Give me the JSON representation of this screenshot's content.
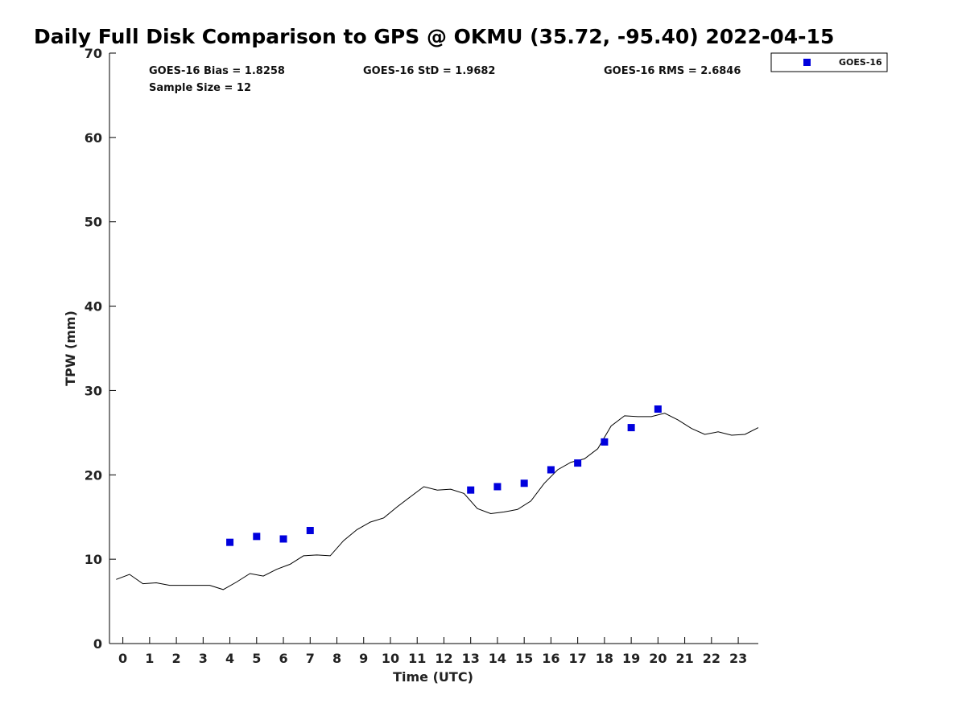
{
  "chart_data": {
    "type": "scatter",
    "title": "Daily Full Disk Comparison to GPS @ OKMU (35.72, -95.40) 2022-04-15",
    "xlabel": "Time (UTC)",
    "ylabel": "TPW (mm)",
    "xlim": [
      -0.5,
      23.75
    ],
    "ylim": [
      0,
      70
    ],
    "x_ticks": [
      0,
      1,
      2,
      3,
      4,
      5,
      6,
      7,
      8,
      9,
      10,
      11,
      12,
      13,
      14,
      15,
      16,
      17,
      18,
      19,
      20,
      21,
      22,
      23
    ],
    "y_ticks": [
      0,
      10,
      20,
      30,
      40,
      50,
      60,
      70
    ],
    "grid": false,
    "legend_position": "outside-top-right",
    "stats": {
      "bias": "GOES-16 Bias = 1.8258",
      "std": "GOES-16 StD = 1.9682",
      "rms": "GOES-16 RMS = 2.6846",
      "sample_size": "Sample Size = 12"
    },
    "series": [
      {
        "name": "GOES-16",
        "type": "scatter",
        "marker": "square",
        "color": "#0000dd",
        "points": [
          [
            4.0,
            12.0
          ],
          [
            5.0,
            12.7
          ],
          [
            6.0,
            12.4
          ],
          [
            7.0,
            13.4
          ],
          [
            13.0,
            18.2
          ],
          [
            14.0,
            18.6
          ],
          [
            15.0,
            19.0
          ],
          [
            16.0,
            20.6
          ],
          [
            17.0,
            21.4
          ],
          [
            18.0,
            23.9
          ],
          [
            19.0,
            25.6
          ],
          [
            20.0,
            27.8
          ]
        ]
      },
      {
        "type": "line",
        "color": "#000000",
        "points": [
          [
            -0.25,
            7.6
          ],
          [
            0.25,
            8.2
          ],
          [
            0.75,
            7.1
          ],
          [
            1.25,
            7.2
          ],
          [
            1.75,
            6.9
          ],
          [
            2.25,
            6.9
          ],
          [
            2.75,
            6.9
          ],
          [
            3.25,
            6.9
          ],
          [
            3.75,
            6.4
          ],
          [
            4.25,
            7.3
          ],
          [
            4.75,
            8.3
          ],
          [
            5.25,
            8.0
          ],
          [
            5.75,
            8.8
          ],
          [
            6.25,
            9.4
          ],
          [
            6.75,
            10.4
          ],
          [
            7.25,
            10.5
          ],
          [
            7.75,
            10.4
          ],
          [
            8.25,
            12.2
          ],
          [
            8.75,
            13.5
          ],
          [
            9.25,
            14.4
          ],
          [
            9.75,
            14.9
          ],
          [
            10.25,
            16.2
          ],
          [
            10.75,
            17.4
          ],
          [
            11.25,
            18.6
          ],
          [
            11.75,
            18.2
          ],
          [
            12.25,
            18.3
          ],
          [
            12.75,
            17.8
          ],
          [
            13.25,
            16.0
          ],
          [
            13.75,
            15.4
          ],
          [
            14.25,
            15.6
          ],
          [
            14.75,
            15.9
          ],
          [
            15.25,
            16.9
          ],
          [
            15.75,
            19.0
          ],
          [
            16.25,
            20.6
          ],
          [
            16.75,
            21.5
          ],
          [
            17.25,
            21.9
          ],
          [
            17.75,
            23.1
          ],
          [
            18.25,
            25.8
          ],
          [
            18.75,
            27.0
          ],
          [
            19.25,
            26.9
          ],
          [
            19.75,
            26.9
          ],
          [
            20.25,
            27.3
          ],
          [
            20.75,
            26.5
          ],
          [
            21.25,
            25.5
          ],
          [
            21.75,
            24.8
          ],
          [
            22.25,
            25.1
          ],
          [
            22.75,
            24.7
          ],
          [
            23.25,
            24.8
          ],
          [
            23.75,
            25.6
          ]
        ]
      }
    ]
  }
}
